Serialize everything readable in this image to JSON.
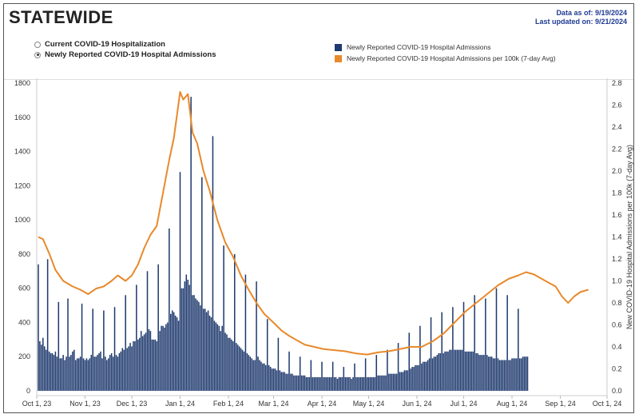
{
  "header": {
    "title": "STATEWIDE",
    "data_as_of": "Data as of: 9/19/2024",
    "last_updated": "Last updated on: 9/21/2024"
  },
  "toggle": {
    "options": [
      {
        "label": "Current COVID-19 Hospitalization",
        "selected": false
      },
      {
        "label": "Newly Reported COVID-19 Hospital Admissions",
        "selected": true
      }
    ]
  },
  "legend": {
    "items": [
      {
        "label": "Newly Reported COVID-19 Hospital Admissions",
        "color": "#1f3a6e"
      },
      {
        "label": "Newly Reported COVID-19 Hospital Admissions per 100k (7-day Avg)",
        "color": "#e8892b"
      }
    ]
  },
  "chart_data": {
    "type": "bar",
    "title": "STATEWIDE",
    "xlabel": "",
    "ylabel": "",
    "y2label": "New COVID-19 Hospital Admissions per 100k (7-day Avg)",
    "ylim": [
      0,
      1800
    ],
    "y2lim": [
      0,
      2.8
    ],
    "yticks": [
      "0",
      "200",
      "400",
      "600",
      "800",
      "1000",
      "1200",
      "1400",
      "1600",
      "1800"
    ],
    "y2ticks": [
      "0.0",
      "0.2",
      "0.4",
      "0.6",
      "0.8",
      "1.0",
      "1.2",
      "1.4",
      "1.6",
      "1.8",
      "2.0",
      "2.2",
      "2.4",
      "2.6",
      "2.8"
    ],
    "xticks": [
      "Oct 1, 23",
      "Nov 1, 23",
      "Dec 1, 23",
      "Jan 1, 24",
      "Feb 1, 24",
      "Mar 1, 24",
      "Apr 1, 24",
      "May 1, 24",
      "Jun 1, 24",
      "Jul 1, 24",
      "Aug 1, 24",
      "Sep 1, 24",
      "Oct 1, 24"
    ],
    "x_start": "2023-10-01",
    "x_end": "2024-10-01",
    "bar_start": "2023-10-02",
    "series": [
      {
        "name": "Newly Reported COVID-19 Hospital Admissions",
        "axis": "left",
        "type": "bar",
        "color": "#1f3a6e",
        "values": [
          740,
          290,
          270,
          310,
          260,
          240,
          770,
          230,
          220,
          220,
          210,
          230,
          200,
          520,
          190,
          190,
          210,
          180,
          200,
          540,
          200,
          210,
          230,
          240,
          180,
          190,
          190,
          200,
          510,
          190,
          180,
          190,
          180,
          190,
          210,
          480,
          200,
          200,
          210,
          220,
          230,
          190,
          470,
          200,
          180,
          190,
          210,
          220,
          200,
          490,
          210,
          200,
          220,
          230,
          250,
          240,
          560,
          250,
          260,
          280,
          260,
          290,
          290,
          620,
          300,
          310,
          350,
          320,
          330,
          340,
          700,
          360,
          350,
          300,
          300,
          300,
          290,
          740,
          350,
          380,
          380,
          370,
          390,
          400,
          950,
          450,
          470,
          460,
          440,
          430,
          410,
          1280,
          600,
          600,
          640,
          680,
          650,
          620,
          1720,
          560,
          560,
          540,
          530,
          520,
          500,
          1250,
          480,
          480,
          460,
          470,
          440,
          430,
          1490,
          410,
          400,
          390,
          380,
          350,
          380,
          850,
          340,
          330,
          310,
          310,
          300,
          290,
          800,
          280,
          270,
          260,
          250,
          240,
          230,
          680,
          220,
          210,
          200,
          190,
          180,
          180,
          640,
          200,
          180,
          170,
          160,
          160,
          150,
          420,
          150,
          140,
          130,
          130,
          130,
          120,
          310,
          120,
          110,
          110,
          110,
          100,
          100,
          230,
          100,
          100,
          90,
          90,
          90,
          90,
          200,
          90,
          90,
          90,
          80,
          80,
          80,
          180,
          80,
          80,
          80,
          80,
          80,
          80,
          170,
          80,
          80,
          80,
          80,
          80,
          80,
          170,
          80,
          80,
          70,
          80,
          80,
          80,
          140,
          80,
          80,
          80,
          80,
          70,
          80,
          160,
          80,
          80,
          80,
          80,
          80,
          80,
          190,
          80,
          80,
          80,
          80,
          80,
          80,
          210,
          90,
          90,
          90,
          90,
          90,
          90,
          240,
          100,
          100,
          100,
          100,
          100,
          100,
          280,
          110,
          110,
          110,
          120,
          120,
          120,
          340,
          130,
          140,
          140,
          150,
          150,
          150,
          380,
          160,
          170,
          170,
          170,
          180,
          190,
          430,
          190,
          200,
          200,
          210,
          220,
          220,
          460,
          220,
          230,
          230,
          230,
          240,
          240,
          490,
          240,
          240,
          240,
          240,
          240,
          240,
          520,
          230,
          230,
          230,
          230,
          230,
          230,
          560,
          220,
          220,
          210,
          210,
          210,
          210,
          540,
          210,
          200,
          200,
          200,
          190,
          190,
          600,
          190,
          180,
          180,
          180,
          180,
          180,
          560,
          180,
          180,
          190,
          190,
          190,
          190,
          480,
          190,
          190,
          200,
          200,
          200,
          200
        ],
        "note": "approximate daily values"
      },
      {
        "name": "Newly Reported COVID-19 Hospital Admissions per 100k (7-day Avg)",
        "axis": "right",
        "type": "line",
        "color": "#e8892b",
        "dates": [
          "2023-10-02",
          "2023-10-05",
          "2023-10-09",
          "2023-10-13",
          "2023-10-18",
          "2023-10-24",
          "2023-10-29",
          "2023-11-03",
          "2023-11-08",
          "2023-11-13",
          "2023-11-18",
          "2023-11-22",
          "2023-11-27",
          "2023-12-01",
          "2023-12-05",
          "2023-12-09",
          "2023-12-13",
          "2023-12-17",
          "2023-12-21",
          "2023-12-25",
          "2023-12-28",
          "2024-01-01",
          "2024-01-03",
          "2024-01-06",
          "2024-01-09",
          "2024-01-12",
          "2024-01-16",
          "2024-01-20",
          "2024-01-25",
          "2024-01-30",
          "2024-02-04",
          "2024-02-09",
          "2024-02-14",
          "2024-02-19",
          "2024-02-24",
          "2024-03-01",
          "2024-03-06",
          "2024-03-11",
          "2024-03-16",
          "2024-03-21",
          "2024-03-27",
          "2024-04-02",
          "2024-04-09",
          "2024-04-16",
          "2024-04-23",
          "2024-04-30",
          "2024-05-07",
          "2024-05-14",
          "2024-05-21",
          "2024-05-28",
          "2024-06-04",
          "2024-06-11",
          "2024-06-18",
          "2024-06-25",
          "2024-07-02",
          "2024-07-09",
          "2024-07-16",
          "2024-07-23",
          "2024-07-30",
          "2024-08-05",
          "2024-08-10",
          "2024-08-15",
          "2024-08-20",
          "2024-08-25",
          "2024-08-29",
          "2024-09-02",
          "2024-09-06",
          "2024-09-10",
          "2024-09-14",
          "2024-09-19"
        ],
        "values": [
          1.4,
          1.38,
          1.25,
          1.1,
          1.0,
          0.95,
          0.92,
          0.88,
          0.93,
          0.95,
          1.0,
          1.05,
          1.0,
          1.05,
          1.15,
          1.3,
          1.42,
          1.5,
          1.8,
          2.1,
          2.3,
          2.72,
          2.65,
          2.7,
          2.35,
          2.25,
          2.0,
          1.82,
          1.55,
          1.35,
          1.22,
          1.05,
          0.92,
          0.8,
          0.7,
          0.62,
          0.55,
          0.5,
          0.46,
          0.42,
          0.4,
          0.38,
          0.37,
          0.36,
          0.34,
          0.33,
          0.35,
          0.36,
          0.38,
          0.4,
          0.4,
          0.45,
          0.52,
          0.62,
          0.72,
          0.8,
          0.88,
          0.96,
          1.02,
          1.05,
          1.08,
          1.06,
          1.02,
          0.98,
          0.95,
          0.86,
          0.8,
          0.86,
          0.9,
          0.92
        ]
      }
    ]
  }
}
